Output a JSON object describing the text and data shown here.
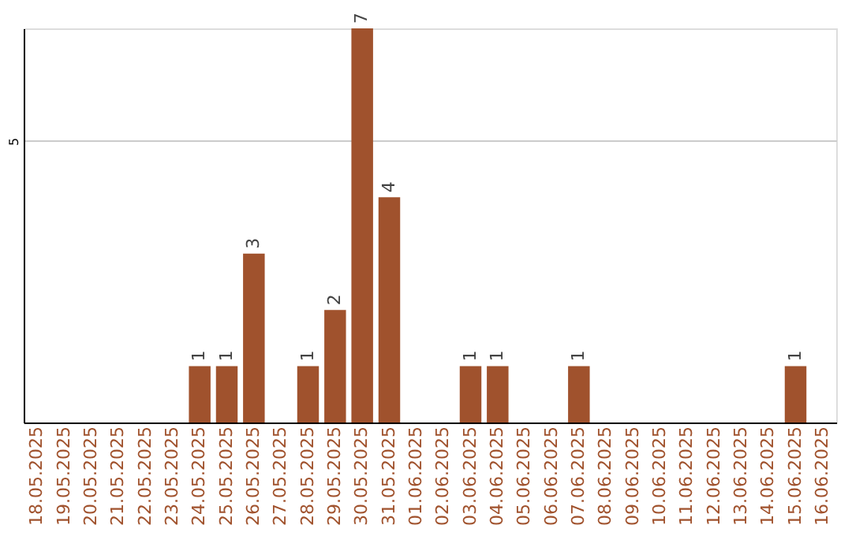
{
  "chart_data": {
    "type": "bar",
    "categories": [
      "18.05.2025",
      "19.05.2025",
      "20.05.2025",
      "21.05.2025",
      "22.05.2025",
      "23.05.2025",
      "24.05.2025",
      "25.05.2025",
      "26.05.2025",
      "27.05.2025",
      "28.05.2025",
      "29.05.2025",
      "30.05.2025",
      "31.05.2025",
      "01.06.2025",
      "02.06.2025",
      "03.06.2025",
      "04.06.2025",
      "05.06.2025",
      "06.06.2025",
      "07.06.2025",
      "08.06.2025",
      "09.06.2025",
      "10.06.2025",
      "11.06.2025",
      "12.06.2025",
      "13.06.2025",
      "14.06.2025",
      "15.06.2025",
      "16.06.2025"
    ],
    "values": [
      null,
      null,
      null,
      null,
      null,
      null,
      1,
      1,
      3,
      null,
      1,
      2,
      7,
      4,
      null,
      null,
      1,
      1,
      null,
      null,
      1,
      null,
      null,
      null,
      null,
      null,
      null,
      null,
      1,
      null
    ],
    "color": "#a0522d",
    "ylim": [
      0,
      7
    ],
    "yticks": [
      5
    ],
    "grid": "y",
    "data_labels": true
  }
}
